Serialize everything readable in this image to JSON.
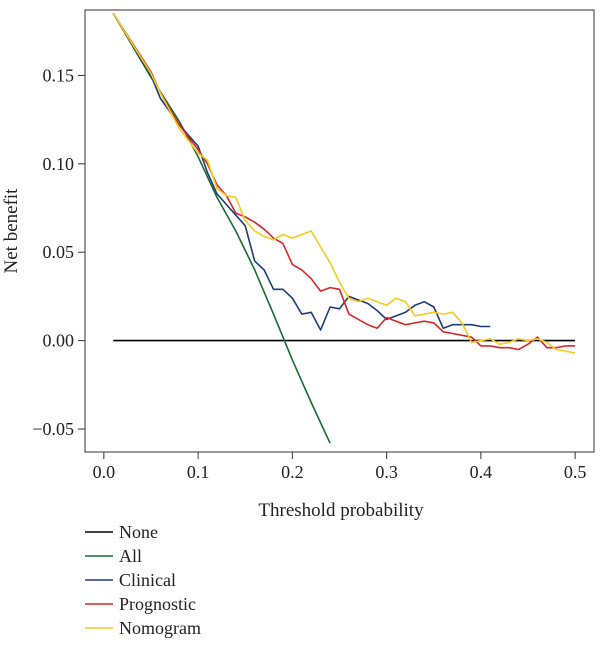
{
  "chart_data": {
    "type": "line",
    "title": "",
    "xlabel": "Threshold probability",
    "ylabel": "Net benefit",
    "xlim": [
      -0.02,
      0.52
    ],
    "ylim": [
      -0.063,
      0.187
    ],
    "x_ticks": [
      0.0,
      0.1,
      0.2,
      0.3,
      0.4,
      0.5
    ],
    "x_tick_labels": [
      "0.0",
      "0.1",
      "0.2",
      "0.3",
      "0.4",
      "0.5"
    ],
    "y_ticks": [
      -0.05,
      0.0,
      0.05,
      0.1,
      0.15
    ],
    "y_tick_labels": [
      "−0.05",
      "0.00",
      "0.05",
      "0.10",
      "0.15"
    ],
    "grid": false,
    "legend_position": "bottom-left",
    "series": [
      {
        "name": "None",
        "color": "#000000",
        "x": [
          0.01,
          0.5
        ],
        "y": [
          0.0,
          0.0
        ]
      },
      {
        "name": "All",
        "color": "#1a6b32",
        "x": [
          0.01,
          0.05,
          0.08,
          0.1,
          0.12,
          0.14,
          0.16,
          0.18,
          0.2,
          0.22,
          0.24
        ],
        "y": [
          0.185,
          0.149,
          0.124,
          0.104,
          0.081,
          0.062,
          0.04,
          0.015,
          -0.011,
          -0.035,
          -0.058
        ]
      },
      {
        "name": "Clinical",
        "color": "#1f3c78",
        "x": [
          0.01,
          0.05,
          0.06,
          0.08,
          0.1,
          0.11,
          0.12,
          0.13,
          0.14,
          0.15,
          0.16,
          0.17,
          0.18,
          0.19,
          0.2,
          0.21,
          0.22,
          0.23,
          0.24,
          0.25,
          0.26,
          0.27,
          0.28,
          0.29,
          0.3,
          0.31,
          0.32,
          0.33,
          0.34,
          0.35,
          0.36,
          0.37,
          0.38,
          0.39,
          0.4,
          0.41
        ],
        "y": [
          0.185,
          0.15,
          0.137,
          0.122,
          0.11,
          0.095,
          0.083,
          0.077,
          0.071,
          0.065,
          0.045,
          0.04,
          0.029,
          0.029,
          0.024,
          0.015,
          0.016,
          0.006,
          0.019,
          0.018,
          0.025,
          0.023,
          0.021,
          0.017,
          0.012,
          0.014,
          0.016,
          0.02,
          0.022,
          0.019,
          0.007,
          0.009,
          0.009,
          0.009,
          0.008,
          0.008
        ]
      },
      {
        "name": "Prognostic",
        "color": "#d62728",
        "x": [
          0.01,
          0.05,
          0.06,
          0.08,
          0.1,
          0.11,
          0.12,
          0.13,
          0.14,
          0.15,
          0.16,
          0.17,
          0.18,
          0.19,
          0.2,
          0.21,
          0.22,
          0.23,
          0.24,
          0.25,
          0.26,
          0.27,
          0.28,
          0.29,
          0.3,
          0.31,
          0.32,
          0.33,
          0.34,
          0.35,
          0.36,
          0.37,
          0.38,
          0.39,
          0.4,
          0.41,
          0.42,
          0.43,
          0.44,
          0.45,
          0.46,
          0.47,
          0.48,
          0.49,
          0.5
        ],
        "y": [
          0.185,
          0.152,
          0.14,
          0.122,
          0.108,
          0.1,
          0.088,
          0.082,
          0.072,
          0.07,
          0.067,
          0.063,
          0.058,
          0.055,
          0.043,
          0.04,
          0.035,
          0.028,
          0.03,
          0.029,
          0.015,
          0.012,
          0.009,
          0.007,
          0.013,
          0.011,
          0.009,
          0.01,
          0.011,
          0.01,
          0.005,
          0.004,
          0.003,
          0.002,
          -0.003,
          -0.003,
          -0.004,
          -0.004,
          -0.005,
          -0.002,
          0.002,
          -0.004,
          -0.004,
          -0.003,
          -0.003
        ]
      },
      {
        "name": "Nomogram",
        "color": "#f4cc1e",
        "x": [
          0.01,
          0.05,
          0.06,
          0.08,
          0.1,
          0.11,
          0.12,
          0.13,
          0.14,
          0.15,
          0.16,
          0.17,
          0.18,
          0.19,
          0.2,
          0.21,
          0.22,
          0.23,
          0.24,
          0.25,
          0.26,
          0.27,
          0.28,
          0.29,
          0.3,
          0.31,
          0.32,
          0.33,
          0.34,
          0.35,
          0.36,
          0.37,
          0.38,
          0.39,
          0.4,
          0.41,
          0.42,
          0.43,
          0.44,
          0.45,
          0.46,
          0.47,
          0.48,
          0.49,
          0.5
        ],
        "y": [
          0.185,
          0.151,
          0.14,
          0.12,
          0.106,
          0.102,
          0.086,
          0.082,
          0.081,
          0.068,
          0.062,
          0.059,
          0.057,
          0.06,
          0.058,
          0.06,
          0.062,
          0.053,
          0.044,
          0.033,
          0.024,
          0.022,
          0.024,
          0.022,
          0.02,
          0.024,
          0.022,
          0.014,
          0.015,
          0.016,
          0.015,
          0.016,
          0.01,
          -0.001,
          0.0,
          0.001,
          -0.002,
          -0.001,
          0.001,
          0.0,
          0.001,
          -0.001,
          -0.005,
          -0.006,
          -0.007
        ]
      }
    ]
  }
}
